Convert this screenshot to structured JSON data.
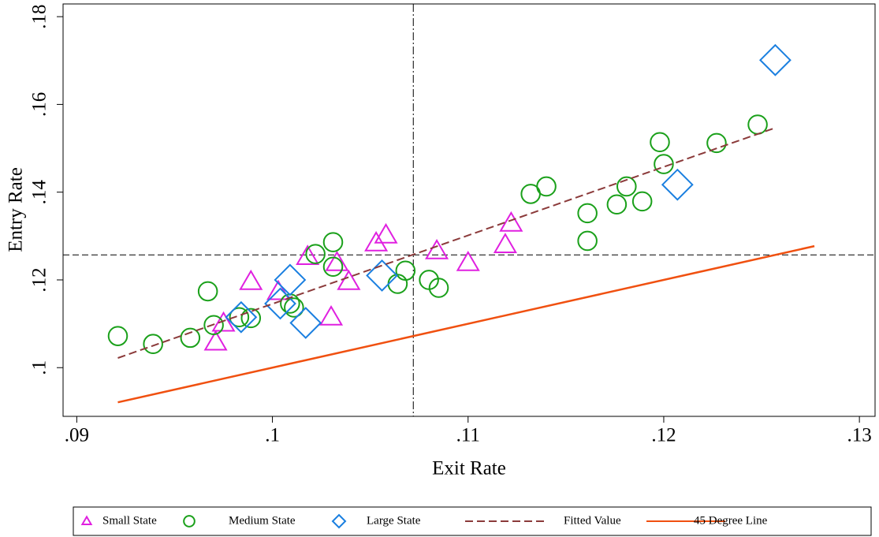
{
  "chart_data": {
    "type": "scatter",
    "x_label": "Exit Rate",
    "y_label": "Entry Rate",
    "xlim": [
      0.0893,
      0.1308
    ],
    "ylim": [
      0.0889,
      0.1829
    ],
    "xticks": [
      {
        "value": 0.09,
        "label": ".09"
      },
      {
        "value": 0.1,
        "label": ".1"
      },
      {
        "value": 0.11,
        "label": ".11"
      },
      {
        "value": 0.12,
        "label": ".12"
      },
      {
        "value": 0.13,
        "label": ".13"
      }
    ],
    "yticks": [
      {
        "value": 0.1,
        "label": ".1"
      },
      {
        "value": 0.12,
        "label": ".12"
      },
      {
        "value": 0.14,
        "label": ".14"
      },
      {
        "value": 0.16,
        "label": ".16"
      },
      {
        "value": 0.18,
        "label": ".18"
      }
    ],
    "reference_lines": {
      "x": 0.1072,
      "y": 0.1257
    },
    "series": [
      {
        "name": "Small State",
        "color": "#e020e0",
        "marker": "triangle",
        "x": [
          0.0971,
          0.0975,
          0.0989,
          0.1003,
          0.1018,
          0.1033,
          0.1039,
          0.103,
          0.1053,
          0.1058,
          0.1084,
          0.11,
          0.1119,
          0.1122
        ],
        "values": [
          0.1058,
          0.1101,
          0.1196,
          0.1173,
          0.1253,
          0.1239,
          0.1196,
          0.1115,
          0.1284,
          0.1302,
          0.1266,
          0.1239,
          0.128,
          0.1329
        ]
      },
      {
        "name": "Medium State",
        "color": "#1aa01a",
        "marker": "circle",
        "x": [
          0.0921,
          0.0939,
          0.0958,
          0.0967,
          0.097,
          0.0983,
          0.0989,
          0.1009,
          0.1011,
          0.1022,
          0.1031,
          0.1031,
          0.1068,
          0.1064,
          0.108,
          0.1085,
          0.1132,
          0.114,
          0.1161,
          0.1161,
          0.1176,
          0.1181,
          0.1189,
          0.1198,
          0.12,
          0.1227,
          0.1248
        ],
        "values": [
          0.1072,
          0.1054,
          0.1068,
          0.1174,
          0.1097,
          0.1115,
          0.1113,
          0.1146,
          0.1137,
          0.1259,
          0.1286,
          0.123,
          0.1221,
          0.1191,
          0.12,
          0.1182,
          0.1396,
          0.1413,
          0.1352,
          0.1289,
          0.1372,
          0.1413,
          0.1379,
          0.1514,
          0.1464,
          0.1512,
          0.1554
        ]
      },
      {
        "name": "Large State",
        "color": "#1a7fe0",
        "marker": "diamond",
        "x": [
          0.0984,
          0.1004,
          0.1009,
          0.1017,
          0.1056,
          0.1207,
          0.1257
        ],
        "values": [
          0.1115,
          0.1146,
          0.12,
          0.1102,
          0.121,
          0.1417,
          0.1701
        ]
      },
      {
        "name": "Fitted Value",
        "color": "#8b3a3a",
        "marker": "dashed-line",
        "x": [
          0.0921,
          0.1256
        ],
        "values": [
          0.1022,
          0.1545
        ]
      },
      {
        "name": "45 Degree Line",
        "color": "#f05010",
        "marker": "solid-line",
        "x": [
          0.0921,
          0.1277
        ],
        "values": [
          0.0921,
          0.1277
        ]
      }
    ]
  }
}
